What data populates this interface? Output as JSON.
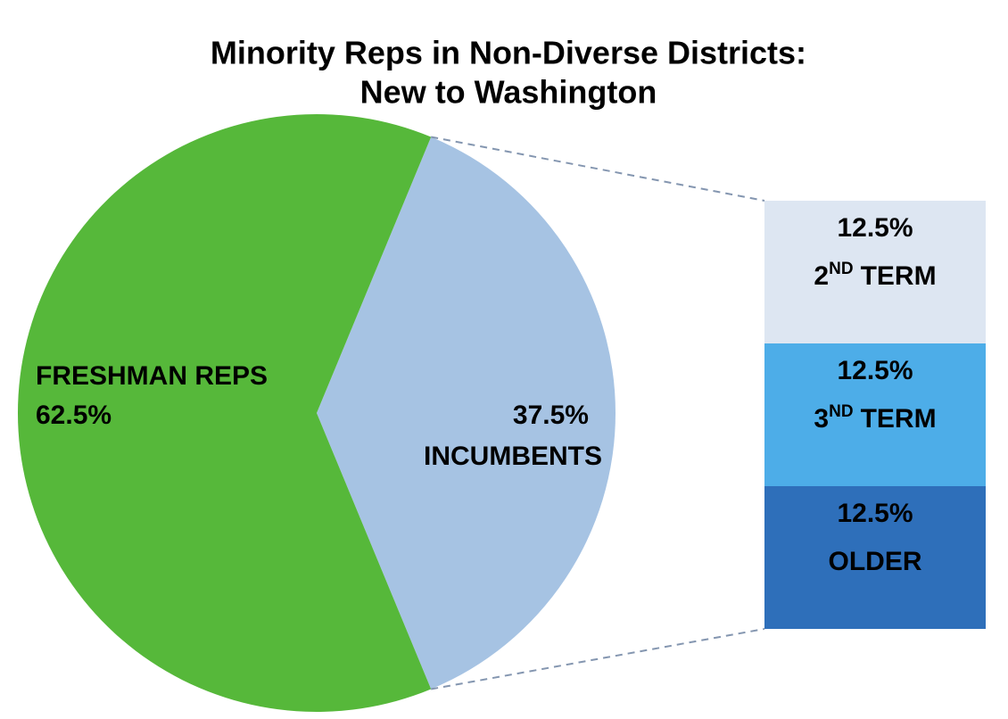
{
  "chart_data": {
    "type": "pie-of-bar",
    "title": [
      "Minority Reps in Non-Diverse Districts:",
      "New to Washington"
    ],
    "categories": [
      "FRESHMAN REPS",
      "INCUMBENTS"
    ],
    "values": [
      62.5,
      37.5
    ],
    "value_labels": [
      "62.5%",
      "37.5%"
    ],
    "colors": [
      "#56b83a",
      "#a6c3e3"
    ],
    "breakdown": {
      "categories": [
        {
          "number": "2",
          "sup": "ND",
          "text": "TERM"
        },
        {
          "number": "3",
          "sup": "ND",
          "text": "TERM"
        },
        "OLDER"
      ],
      "values": [
        12.5,
        12.5,
        12.5
      ],
      "value_labels": [
        "12.5%",
        "12.5%",
        "12.5%"
      ],
      "colors": [
        "#dde6f2",
        "#4dade8",
        "#2e6fba"
      ]
    }
  }
}
